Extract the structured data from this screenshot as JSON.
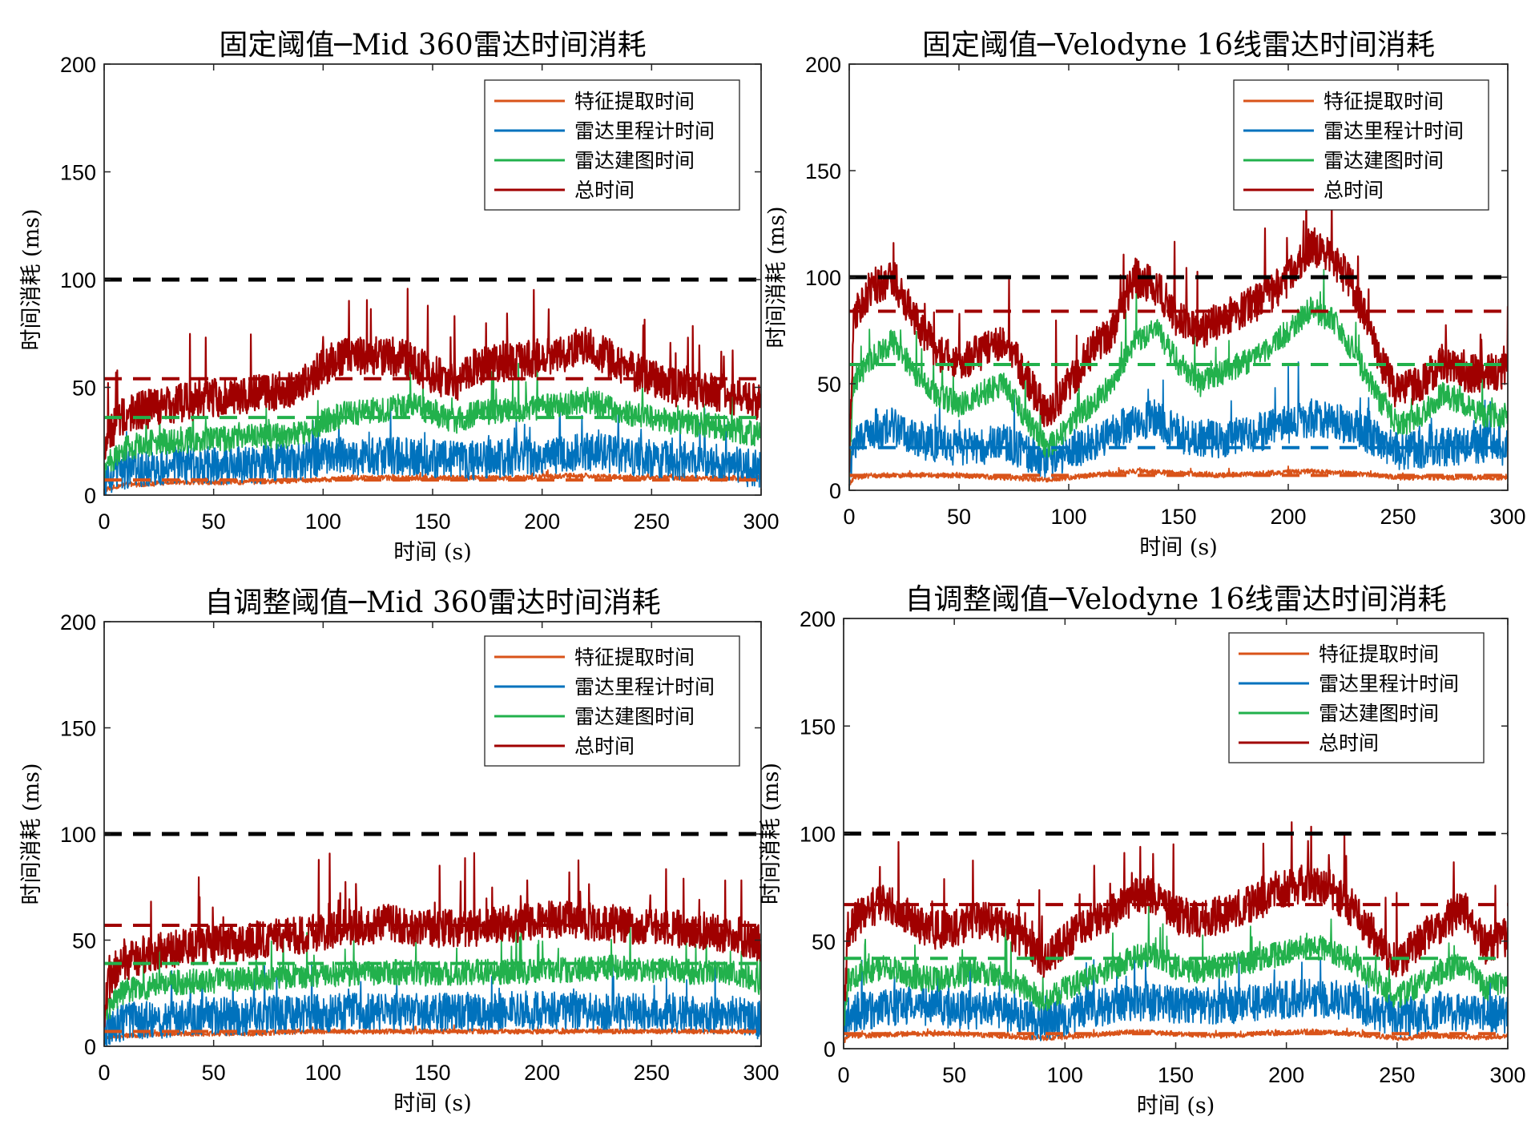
{
  "colors": {
    "feature": "#D95319",
    "odometry": "#0072BD",
    "mapping": "#22B14C",
    "total": "#A00000",
    "reference": "#000000"
  },
  "chart_data": [
    {
      "type": "line",
      "title": "固定阈值─Mid 360雷达时间消耗",
      "xlabel": "时间 (s)",
      "ylabel": "时间消耗 (ms)",
      "xlim": [
        0,
        300
      ],
      "ylim": [
        0,
        200
      ],
      "xticks": [
        0,
        50,
        100,
        150,
        200,
        250,
        300
      ],
      "yticks": [
        0,
        50,
        100,
        150,
        200
      ],
      "grid": false,
      "legend_position": "top-right",
      "series": [
        {
          "name": "特征提取时间",
          "color": "feature",
          "mean": 7,
          "x": [
            0,
            2,
            5,
            10,
            20,
            30,
            50,
            70,
            90,
            100,
            110,
            130,
            150,
            170,
            190,
            210,
            220,
            240,
            260,
            280,
            300
          ],
          "y": [
            2,
            3,
            4,
            5,
            5,
            6,
            6,
            6,
            7,
            7,
            8,
            8,
            8,
            8,
            8,
            9,
            9,
            8,
            8,
            8,
            8
          ]
        },
        {
          "name": "雷达里程计时间",
          "color": "odometry",
          "mean": null,
          "x": [
            0,
            2,
            5,
            10,
            20,
            30,
            50,
            70,
            90,
            100,
            110,
            130,
            150,
            170,
            190,
            210,
            220,
            240,
            260,
            280,
            300
          ],
          "y": [
            5,
            8,
            10,
            12,
            13,
            14,
            14,
            14,
            16,
            18,
            18,
            18,
            17,
            16,
            18,
            18,
            20,
            18,
            16,
            15,
            12
          ]
        },
        {
          "name": "雷达建图时间",
          "color": "mapping",
          "mean": 36,
          "x": [
            0,
            2,
            5,
            10,
            20,
            30,
            50,
            70,
            90,
            100,
            110,
            130,
            140,
            150,
            160,
            170,
            190,
            210,
            220,
            240,
            260,
            280,
            300
          ],
          "y": [
            10,
            15,
            18,
            22,
            24,
            25,
            26,
            27,
            28,
            34,
            38,
            40,
            42,
            38,
            34,
            38,
            40,
            42,
            44,
            38,
            34,
            32,
            28
          ]
        },
        {
          "name": "总时间",
          "color": "total",
          "mean": 54,
          "x": [
            0,
            2,
            5,
            10,
            20,
            30,
            50,
            70,
            90,
            100,
            110,
            130,
            140,
            150,
            160,
            170,
            190,
            210,
            220,
            240,
            260,
            280,
            300
          ],
          "y": [
            15,
            28,
            33,
            38,
            40,
            42,
            45,
            47,
            50,
            60,
            64,
            65,
            62,
            56,
            52,
            60,
            62,
            66,
            70,
            58,
            50,
            48,
            42
          ]
        }
      ],
      "reference_lines": [
        {
          "y": 100,
          "color": "reference"
        }
      ]
    },
    {
      "type": "line",
      "title": "固定阈值─Velodyne 16线雷达时间消耗",
      "xlabel": "时间 (s)",
      "ylabel": "时间消耗 (ms)",
      "xlim": [
        0,
        300
      ],
      "ylim": [
        0,
        200
      ],
      "xticks": [
        0,
        50,
        100,
        150,
        200,
        250,
        300
      ],
      "yticks": [
        0,
        50,
        100,
        150,
        200
      ],
      "grid": false,
      "legend_position": "top-right",
      "series": [
        {
          "name": "特征提取时间",
          "color": "feature",
          "mean": 7,
          "x": [
            0,
            2,
            10,
            30,
            50,
            70,
            90,
            110,
            130,
            150,
            170,
            190,
            210,
            230,
            250,
            270,
            290,
            300
          ],
          "y": [
            3,
            6,
            7,
            7,
            7,
            6,
            5,
            7,
            9,
            8,
            7,
            8,
            9,
            8,
            6,
            6,
            6,
            6
          ]
        },
        {
          "name": "雷达里程计时间",
          "color": "odometry",
          "mean": 20,
          "x": [
            0,
            2,
            10,
            20,
            30,
            50,
            70,
            90,
            110,
            130,
            140,
            150,
            170,
            190,
            210,
            230,
            250,
            270,
            290,
            300
          ],
          "y": [
            5,
            20,
            28,
            30,
            24,
            20,
            22,
            14,
            22,
            32,
            34,
            26,
            24,
            28,
            34,
            30,
            18,
            20,
            22,
            20
          ]
        },
        {
          "name": "雷达建图时间",
          "color": "mapping",
          "mean": 59,
          "x": [
            0,
            2,
            10,
            20,
            30,
            40,
            50,
            60,
            70,
            80,
            90,
            100,
            110,
            120,
            130,
            140,
            150,
            160,
            170,
            180,
            190,
            200,
            210,
            220,
            230,
            240,
            250,
            260,
            270,
            280,
            290,
            300
          ],
          "y": [
            10,
            50,
            62,
            70,
            55,
            45,
            40,
            45,
            50,
            35,
            20,
            30,
            40,
            50,
            70,
            75,
            60,
            50,
            55,
            60,
            65,
            75,
            85,
            80,
            65,
            45,
            30,
            35,
            45,
            40,
            35,
            35
          ]
        },
        {
          "name": "总时间",
          "color": "total",
          "mean": 84,
          "x": [
            0,
            2,
            10,
            20,
            30,
            40,
            50,
            60,
            70,
            80,
            90,
            100,
            110,
            120,
            130,
            140,
            150,
            160,
            170,
            180,
            190,
            200,
            210,
            220,
            230,
            240,
            250,
            260,
            270,
            280,
            290,
            300
          ],
          "y": [
            15,
            80,
            95,
            100,
            80,
            65,
            60,
            65,
            70,
            55,
            35,
            50,
            65,
            75,
            100,
            95,
            80,
            75,
            80,
            85,
            90,
            100,
            115,
            110,
            95,
            65,
            45,
            50,
            60,
            55,
            55,
            55
          ]
        }
      ],
      "reference_lines": [
        {
          "y": 100,
          "color": "reference"
        }
      ]
    },
    {
      "type": "line",
      "title": "自调整阈值─Mid 360雷达时间消耗",
      "xlabel": "时间 (s)",
      "ylabel": "时间消耗 (ms)",
      "xlim": [
        0,
        300
      ],
      "ylim": [
        0,
        200
      ],
      "xticks": [
        0,
        50,
        100,
        150,
        200,
        250,
        300
      ],
      "yticks": [
        0,
        50,
        100,
        150,
        200
      ],
      "grid": false,
      "legend_position": "top-right",
      "series": [
        {
          "name": "特征提取时间",
          "color": "feature",
          "mean": 7,
          "x": [
            0,
            2,
            10,
            30,
            50,
            70,
            90,
            110,
            130,
            150,
            170,
            190,
            210,
            230,
            250,
            270,
            290,
            300
          ],
          "y": [
            2,
            4,
            5,
            6,
            6,
            6,
            7,
            7,
            7,
            7,
            7,
            7,
            7,
            7,
            7,
            7,
            7,
            7
          ]
        },
        {
          "name": "雷达里程计时间",
          "color": "odometry",
          "mean": null,
          "x": [
            0,
            2,
            10,
            30,
            50,
            70,
            90,
            110,
            130,
            150,
            170,
            190,
            210,
            230,
            250,
            270,
            290,
            300
          ],
          "y": [
            4,
            8,
            12,
            13,
            14,
            14,
            15,
            16,
            16,
            16,
            16,
            17,
            17,
            16,
            16,
            15,
            15,
            12
          ]
        },
        {
          "name": "雷达建图时间",
          "color": "mapping",
          "mean": 39,
          "x": [
            0,
            2,
            5,
            10,
            20,
            30,
            50,
            70,
            90,
            110,
            130,
            150,
            170,
            190,
            210,
            230,
            250,
            270,
            290,
            300
          ],
          "y": [
            10,
            18,
            22,
            26,
            28,
            30,
            31,
            32,
            33,
            34,
            35,
            34,
            35,
            35,
            36,
            37,
            36,
            35,
            34,
            30
          ]
        },
        {
          "name": "总时间",
          "color": "total",
          "mean": 57,
          "x": [
            0,
            2,
            5,
            10,
            20,
            30,
            50,
            70,
            90,
            110,
            130,
            150,
            170,
            190,
            210,
            230,
            250,
            270,
            290,
            300
          ],
          "y": [
            15,
            30,
            36,
            40,
            44,
            46,
            48,
            50,
            52,
            56,
            58,
            55,
            56,
            58,
            60,
            58,
            56,
            55,
            52,
            48
          ]
        }
      ],
      "reference_lines": [
        {
          "y": 100,
          "color": "reference"
        }
      ]
    },
    {
      "type": "line",
      "title": "自调整阈值─Velodyne 16线雷达时间消耗",
      "xlabel": "时间 (s)",
      "ylabel": "时间消耗 (ms)",
      "xlim": [
        0,
        300
      ],
      "ylim": [
        0,
        200
      ],
      "xticks": [
        0,
        50,
        100,
        150,
        200,
        250,
        300
      ],
      "yticks": [
        0,
        50,
        100,
        150,
        200
      ],
      "grid": false,
      "legend_position": "top-right",
      "series": [
        {
          "name": "特征提取时间",
          "color": "feature",
          "mean": 7,
          "x": [
            0,
            2,
            10,
            30,
            50,
            70,
            90,
            110,
            130,
            150,
            170,
            190,
            210,
            230,
            250,
            270,
            290,
            300
          ],
          "y": [
            3,
            6,
            6,
            7,
            7,
            6,
            5,
            6,
            8,
            7,
            6,
            7,
            8,
            7,
            5,
            6,
            5,
            6
          ]
        },
        {
          "name": "雷达里程计时间",
          "color": "odometry",
          "mean": null,
          "x": [
            0,
            2,
            10,
            30,
            50,
            70,
            90,
            110,
            130,
            150,
            170,
            190,
            210,
            230,
            250,
            270,
            290,
            300
          ],
          "y": [
            5,
            15,
            18,
            20,
            18,
            18,
            12,
            18,
            22,
            20,
            20,
            22,
            24,
            22,
            14,
            18,
            16,
            16
          ]
        },
        {
          "name": "雷达建图时间",
          "color": "mapping",
          "mean": 42,
          "x": [
            0,
            2,
            10,
            20,
            30,
            40,
            50,
            60,
            70,
            80,
            90,
            100,
            110,
            120,
            130,
            140,
            150,
            160,
            170,
            180,
            190,
            200,
            210,
            220,
            230,
            240,
            250,
            260,
            270,
            280,
            290,
            300
          ],
          "y": [
            10,
            32,
            36,
            38,
            34,
            32,
            34,
            36,
            34,
            30,
            22,
            28,
            32,
            36,
            42,
            44,
            38,
            36,
            38,
            40,
            42,
            45,
            48,
            46,
            40,
            32,
            24,
            30,
            36,
            40,
            28,
            32
          ]
        },
        {
          "name": "总时间",
          "color": "total",
          "mean": 67,
          "x": [
            0,
            2,
            10,
            20,
            30,
            40,
            50,
            60,
            70,
            80,
            90,
            100,
            110,
            120,
            130,
            140,
            150,
            160,
            170,
            180,
            190,
            200,
            210,
            220,
            230,
            240,
            250,
            260,
            270,
            280,
            290,
            300
          ],
          "y": [
            15,
            55,
            65,
            68,
            60,
            55,
            56,
            60,
            58,
            52,
            40,
            50,
            58,
            62,
            70,
            72,
            62,
            60,
            62,
            66,
            70,
            74,
            78,
            74,
            65,
            52,
            40,
            50,
            58,
            65,
            48,
            52
          ]
        }
      ],
      "reference_lines": [
        {
          "y": 100,
          "color": "reference"
        }
      ]
    }
  ]
}
